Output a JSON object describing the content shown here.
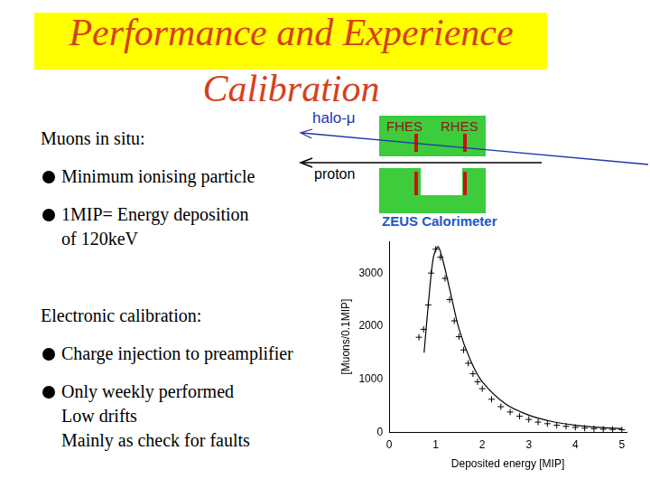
{
  "title": [
    "Performance and Experience",
    "Calibration"
  ],
  "sections": [
    {
      "heading": "Muons in situ:",
      "bullets": [
        [
          "Minimum ionising particle"
        ],
        [
          "1MIP= Energy deposition",
          "of 120keV"
        ]
      ]
    },
    {
      "heading": "Electronic calibration:",
      "bullets": [
        [
          "Charge injection to preamplifier"
        ],
        [
          "Only weekly performed",
          "Low drifts",
          "Mainly as check for  faults"
        ]
      ]
    }
  ],
  "diagram": {
    "halo_label": "halo-μ",
    "proton_label": "proton",
    "detector_labels": [
      "FHES",
      "RHES"
    ],
    "caption": "ZEUS Calorimeter"
  },
  "chart_data": {
    "type": "scatter",
    "x_label": "Deposited energy [MIP]",
    "y_label": "[Muons/0.1MIP]",
    "series": [
      {
        "type": "scatter",
        "marker": "cross",
        "color": "#000000",
        "x": [
          0.64,
          0.74,
          0.84,
          0.9,
          1.0,
          1.1,
          1.2,
          1.3,
          1.4,
          1.5,
          1.6,
          1.7,
          1.8,
          1.9,
          2.0,
          2.2,
          2.4,
          2.6,
          2.8,
          3.0,
          3.2,
          3.4,
          3.6,
          3.8,
          4.0,
          4.2,
          4.4,
          4.6,
          4.8,
          5.0
        ],
        "values": [
          1790,
          1940,
          2400,
          3000,
          3450,
          3300,
          2900,
          2500,
          2100,
          1800,
          1550,
          1300,
          1100,
          950,
          820,
          620,
          480,
          380,
          300,
          240,
          190,
          160,
          130,
          110,
          90,
          75,
          65,
          55,
          50,
          45
        ]
      },
      {
        "type": "line",
        "line_style": "solid",
        "color": "#000000",
        "x": [
          0.75,
          0.85,
          0.95,
          1.05,
          1.15,
          1.3,
          1.5,
          1.75,
          2.0,
          2.5,
          3.0,
          3.5,
          4.0,
          4.5,
          5.0
        ],
        "values": [
          1500,
          2500,
          3300,
          3500,
          3250,
          2700,
          1950,
          1350,
          950,
          530,
          320,
          200,
          130,
          90,
          65
        ]
      }
    ],
    "xlim": [
      0,
      5.1
    ],
    "xticks": [
      0,
      1,
      2,
      3,
      4,
      5
    ],
    "ylim": [
      0,
      3600
    ],
    "yticks": [
      0,
      1000,
      2000,
      3000
    ],
    "grid": false
  }
}
